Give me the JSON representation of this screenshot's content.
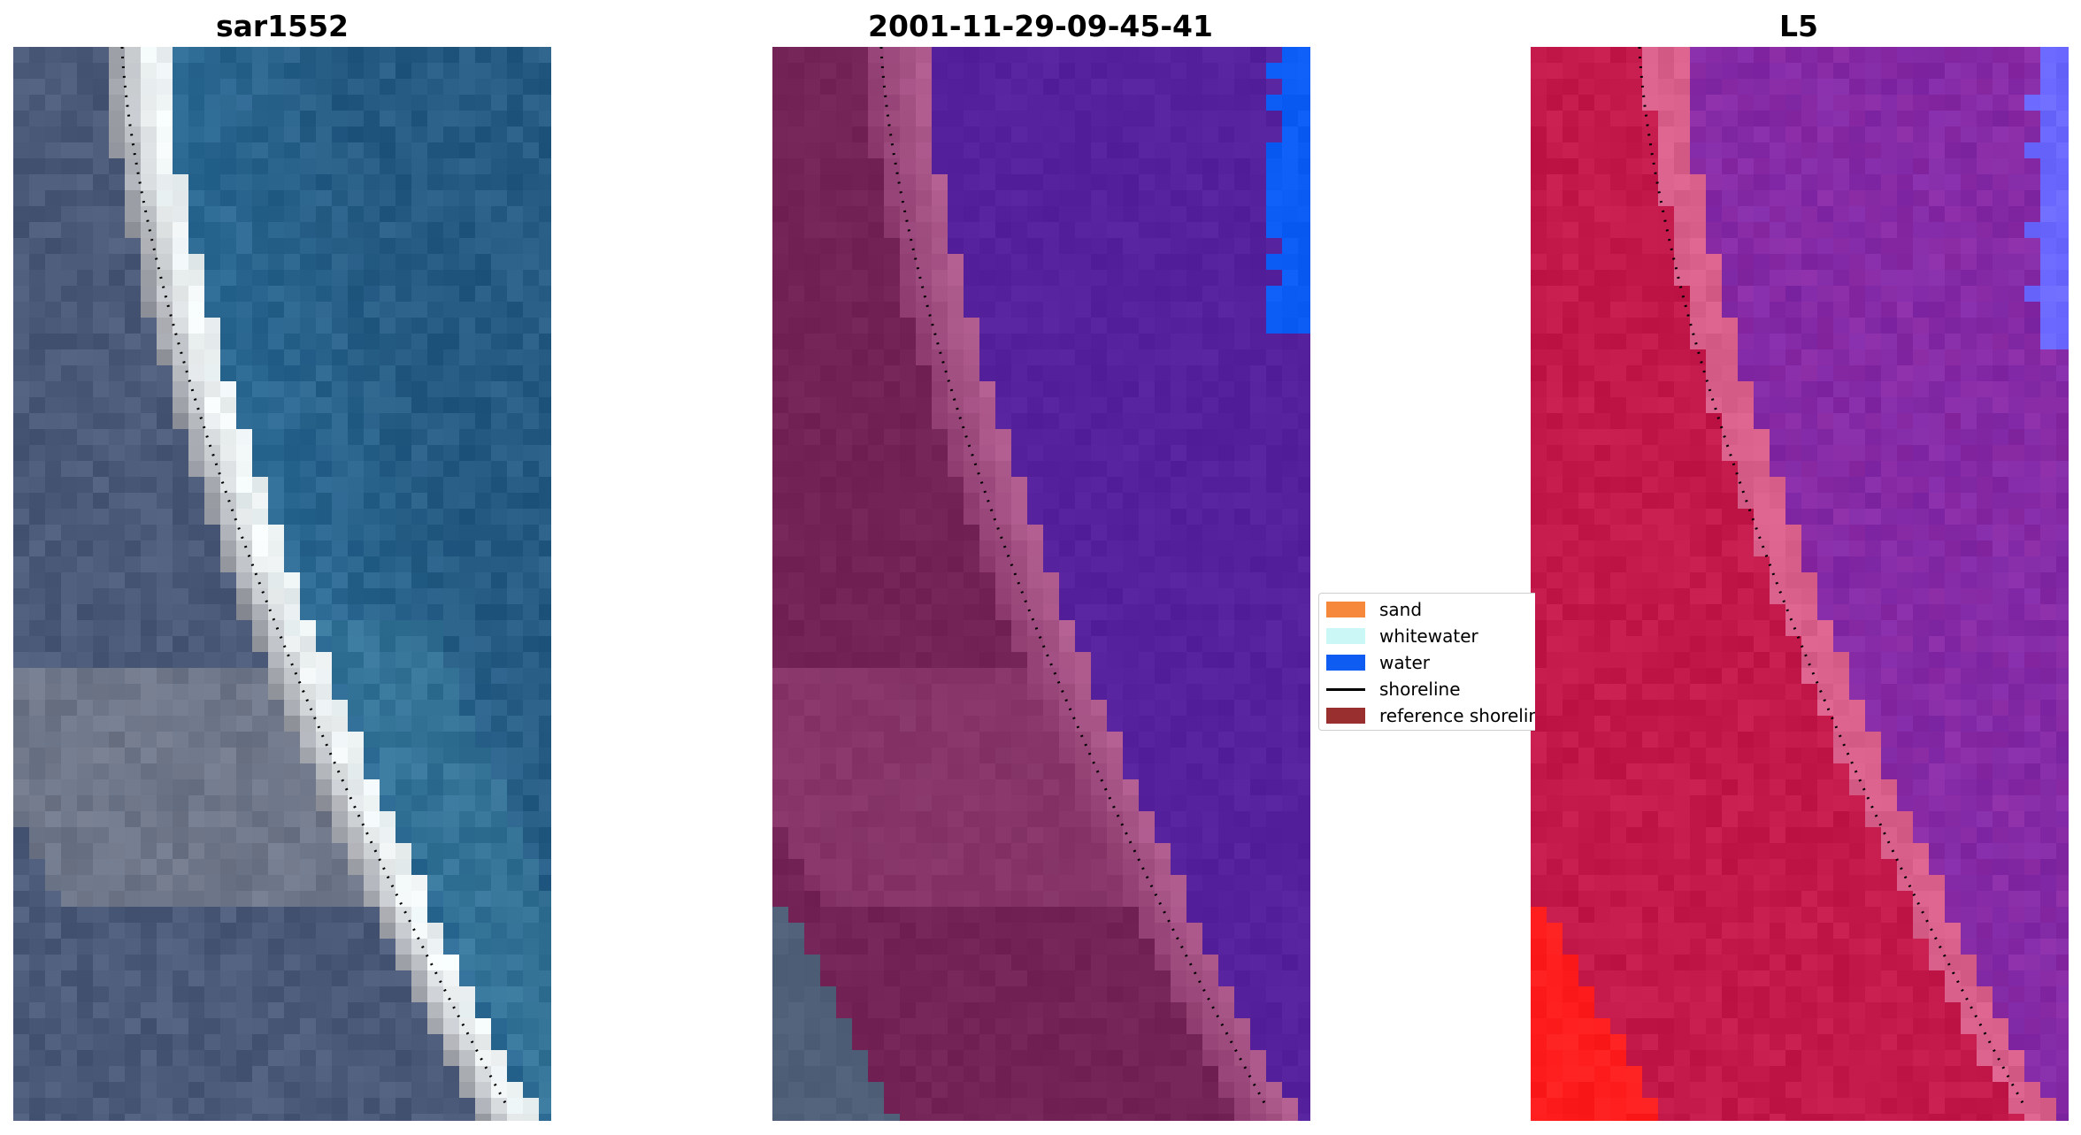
{
  "panels": [
    {
      "title": "sar1552",
      "palette": "rgb"
    },
    {
      "title": "2001-11-29-09-45-41",
      "palette": "classified"
    },
    {
      "title": "L5",
      "palette": "mndwi"
    }
  ],
  "legend": {
    "items": [
      {
        "label": "sand",
        "color": "#f5883a",
        "kind": "patch"
      },
      {
        "label": "whitewater",
        "color": "#ccf7f7",
        "kind": "patch"
      },
      {
        "label": "water",
        "color": "#0f5cf2",
        "kind": "patch"
      },
      {
        "label": "shoreline",
        "color": "#000000",
        "kind": "line"
      },
      {
        "label": "reference shoreline",
        "color": "#99302f",
        "kind": "patch"
      }
    ]
  },
  "colors": {
    "rgb_land": "#4a5a78",
    "rgb_sand": "#8d8f98",
    "rgb_whitewater": "#f2f6f6",
    "rgb_water": "#2c6a94",
    "class_land": "#742357",
    "class_whitewater": "#b35f92",
    "class_water": "#55219c",
    "class_blue": "#0b5cf5",
    "mndwi_land": "#c2184a",
    "mndwi_edge": "#d9608a",
    "mndwi_water": "#8a2ba4",
    "mndwi_blue": "#6a68ff",
    "mndwi_red": "#ff1d1d",
    "shoreline_dots": "#000000"
  }
}
